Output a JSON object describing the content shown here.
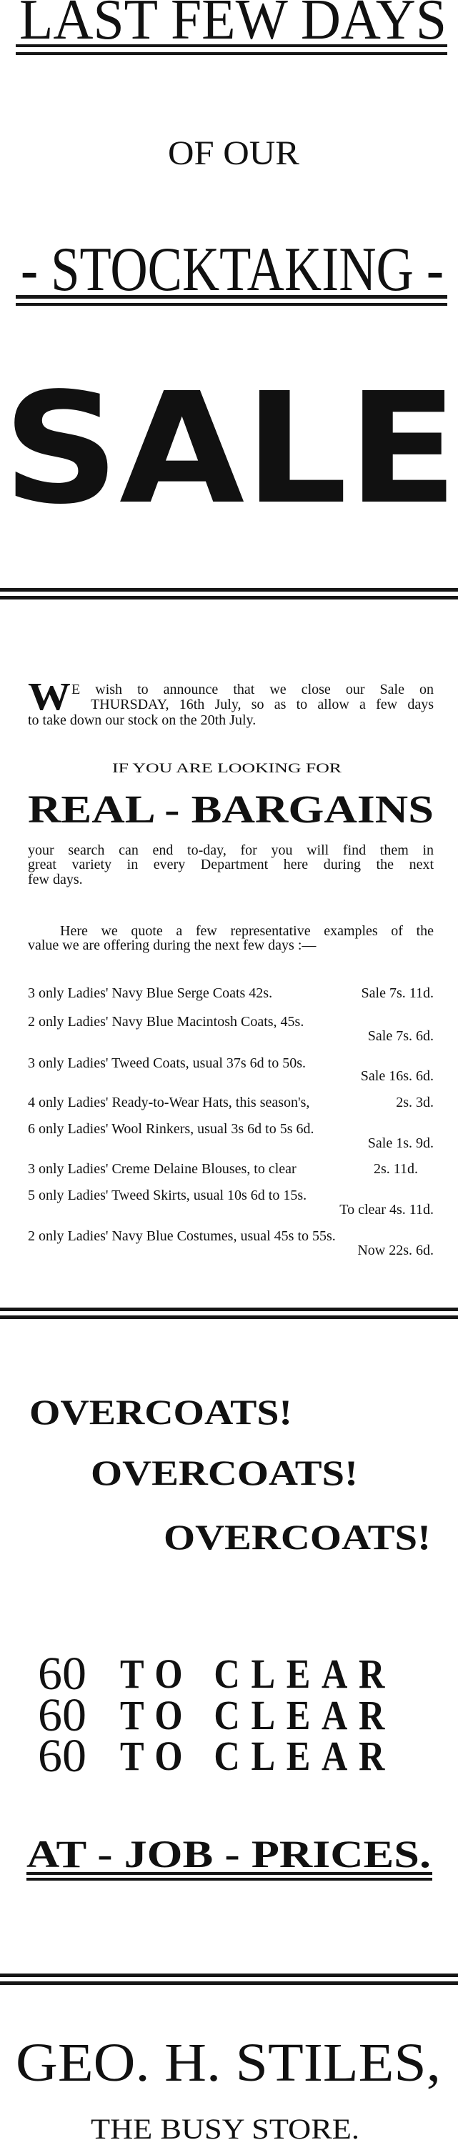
{
  "header": {
    "line1": "LAST FEW DAYS",
    "line2": "OF OUR",
    "line3": "- STOCKTAKING -",
    "sale": "SALE"
  },
  "announcement": {
    "drop_cap": "W",
    "lines": [
      "E wish to announce that we close our Sale on",
      "THURSDAY, 16th July, so as to allow a few days",
      "to take down our stock on the 20th July."
    ]
  },
  "lookup": {
    "intro": "IF YOU ARE LOOKING FOR",
    "headline": "REAL - BARGAINS",
    "lines": [
      "your search can end to-day, for you will find them in",
      "great variety in every Department here during the next",
      "few days."
    ],
    "quote_lines": [
      "Here we quote a few representative examples of the",
      "value we are offering during the next few days :—"
    ]
  },
  "items": [
    {
      "desc": "3 only Ladies' Navy Blue Serge Coats 42s.",
      "price": "Sale 7s. 11d."
    },
    {
      "desc": "2 only Ladies' Navy Blue Macintosh Coats, 45s.",
      "price": "Sale 7s. 6d."
    },
    {
      "desc": "3 only Ladies' Tweed Coats, usual 37s 6d to 50s.",
      "price": "Sale 16s. 6d."
    },
    {
      "desc": "4 only Ladies' Ready-to-Wear Hats, this season's,",
      "price": "2s. 3d."
    },
    {
      "desc": "6 only Ladies' Wool Rinkers, usual 3s 6d to 5s 6d.",
      "price": "Sale 1s. 9d."
    },
    {
      "desc": "3 only Ladies' Creme Delaine Blouses, to clear",
      "price": "2s. 11d."
    },
    {
      "desc": "5 only Ladies' Tweed Skirts, usual 10s 6d to 15s.",
      "price": "To clear 4s. 11d."
    },
    {
      "desc": "2 only Ladies' Navy Blue Costumes, usual 45s to 55s.",
      "price": "Now 22s. 6d."
    }
  ],
  "overcoats": [
    "OVERCOATS!",
    "OVERCOATS!",
    "OVERCOATS!"
  ],
  "clear_rows": [
    {
      "count": "60",
      "text": "TO CLEAR"
    },
    {
      "count": "60",
      "text": "TO CLEAR"
    },
    {
      "count": "60",
      "text": "TO CLEAR"
    }
  ],
  "job_prices": "AT - JOB - PRICES.",
  "footer": {
    "name": "GEO. H. STILES,",
    "tagline": "THE BUSY STORE."
  },
  "colors": {
    "ink": "#111111",
    "paper": "#ffffff"
  }
}
